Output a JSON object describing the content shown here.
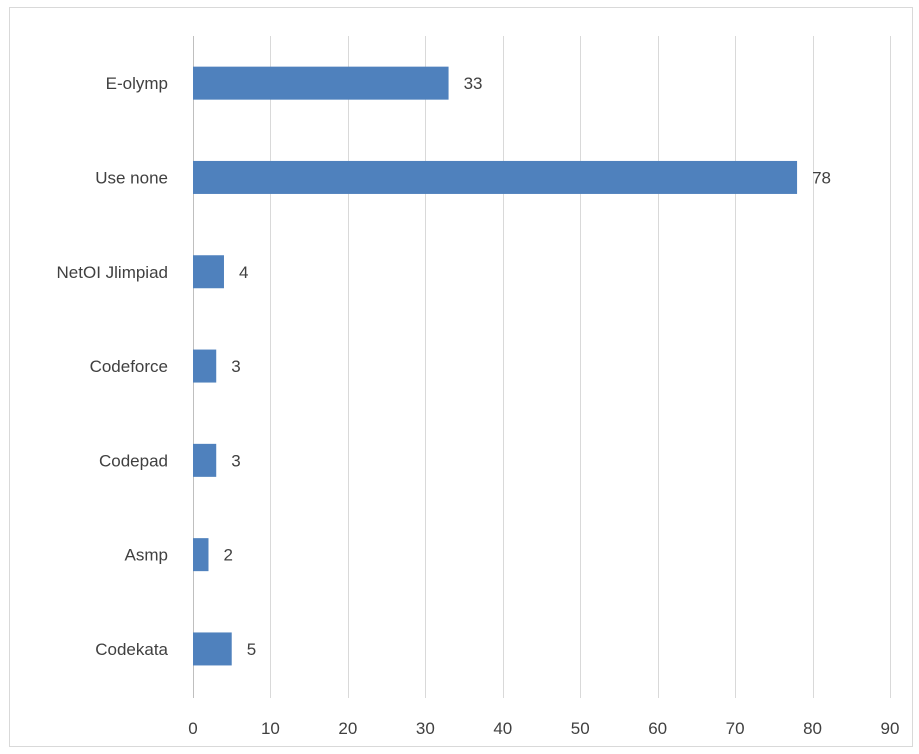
{
  "chart_data": {
    "type": "bar",
    "orientation": "horizontal",
    "title": "",
    "xlabel": "",
    "ylabel": "",
    "categories": [
      "E-olymp",
      "Use none",
      "NetOI Jlimpiad",
      "Codeforce",
      "Codepad",
      "Asmp",
      "Codekata"
    ],
    "values": [
      33,
      78,
      4,
      3,
      3,
      2,
      5
    ],
    "xlim": [
      0,
      90
    ],
    "x_ticks": [
      0,
      10,
      20,
      30,
      40,
      50,
      60,
      70,
      80,
      90
    ],
    "grid": true,
    "legend": "none",
    "data_labels": true,
    "bar_color": "#4f81bd"
  }
}
